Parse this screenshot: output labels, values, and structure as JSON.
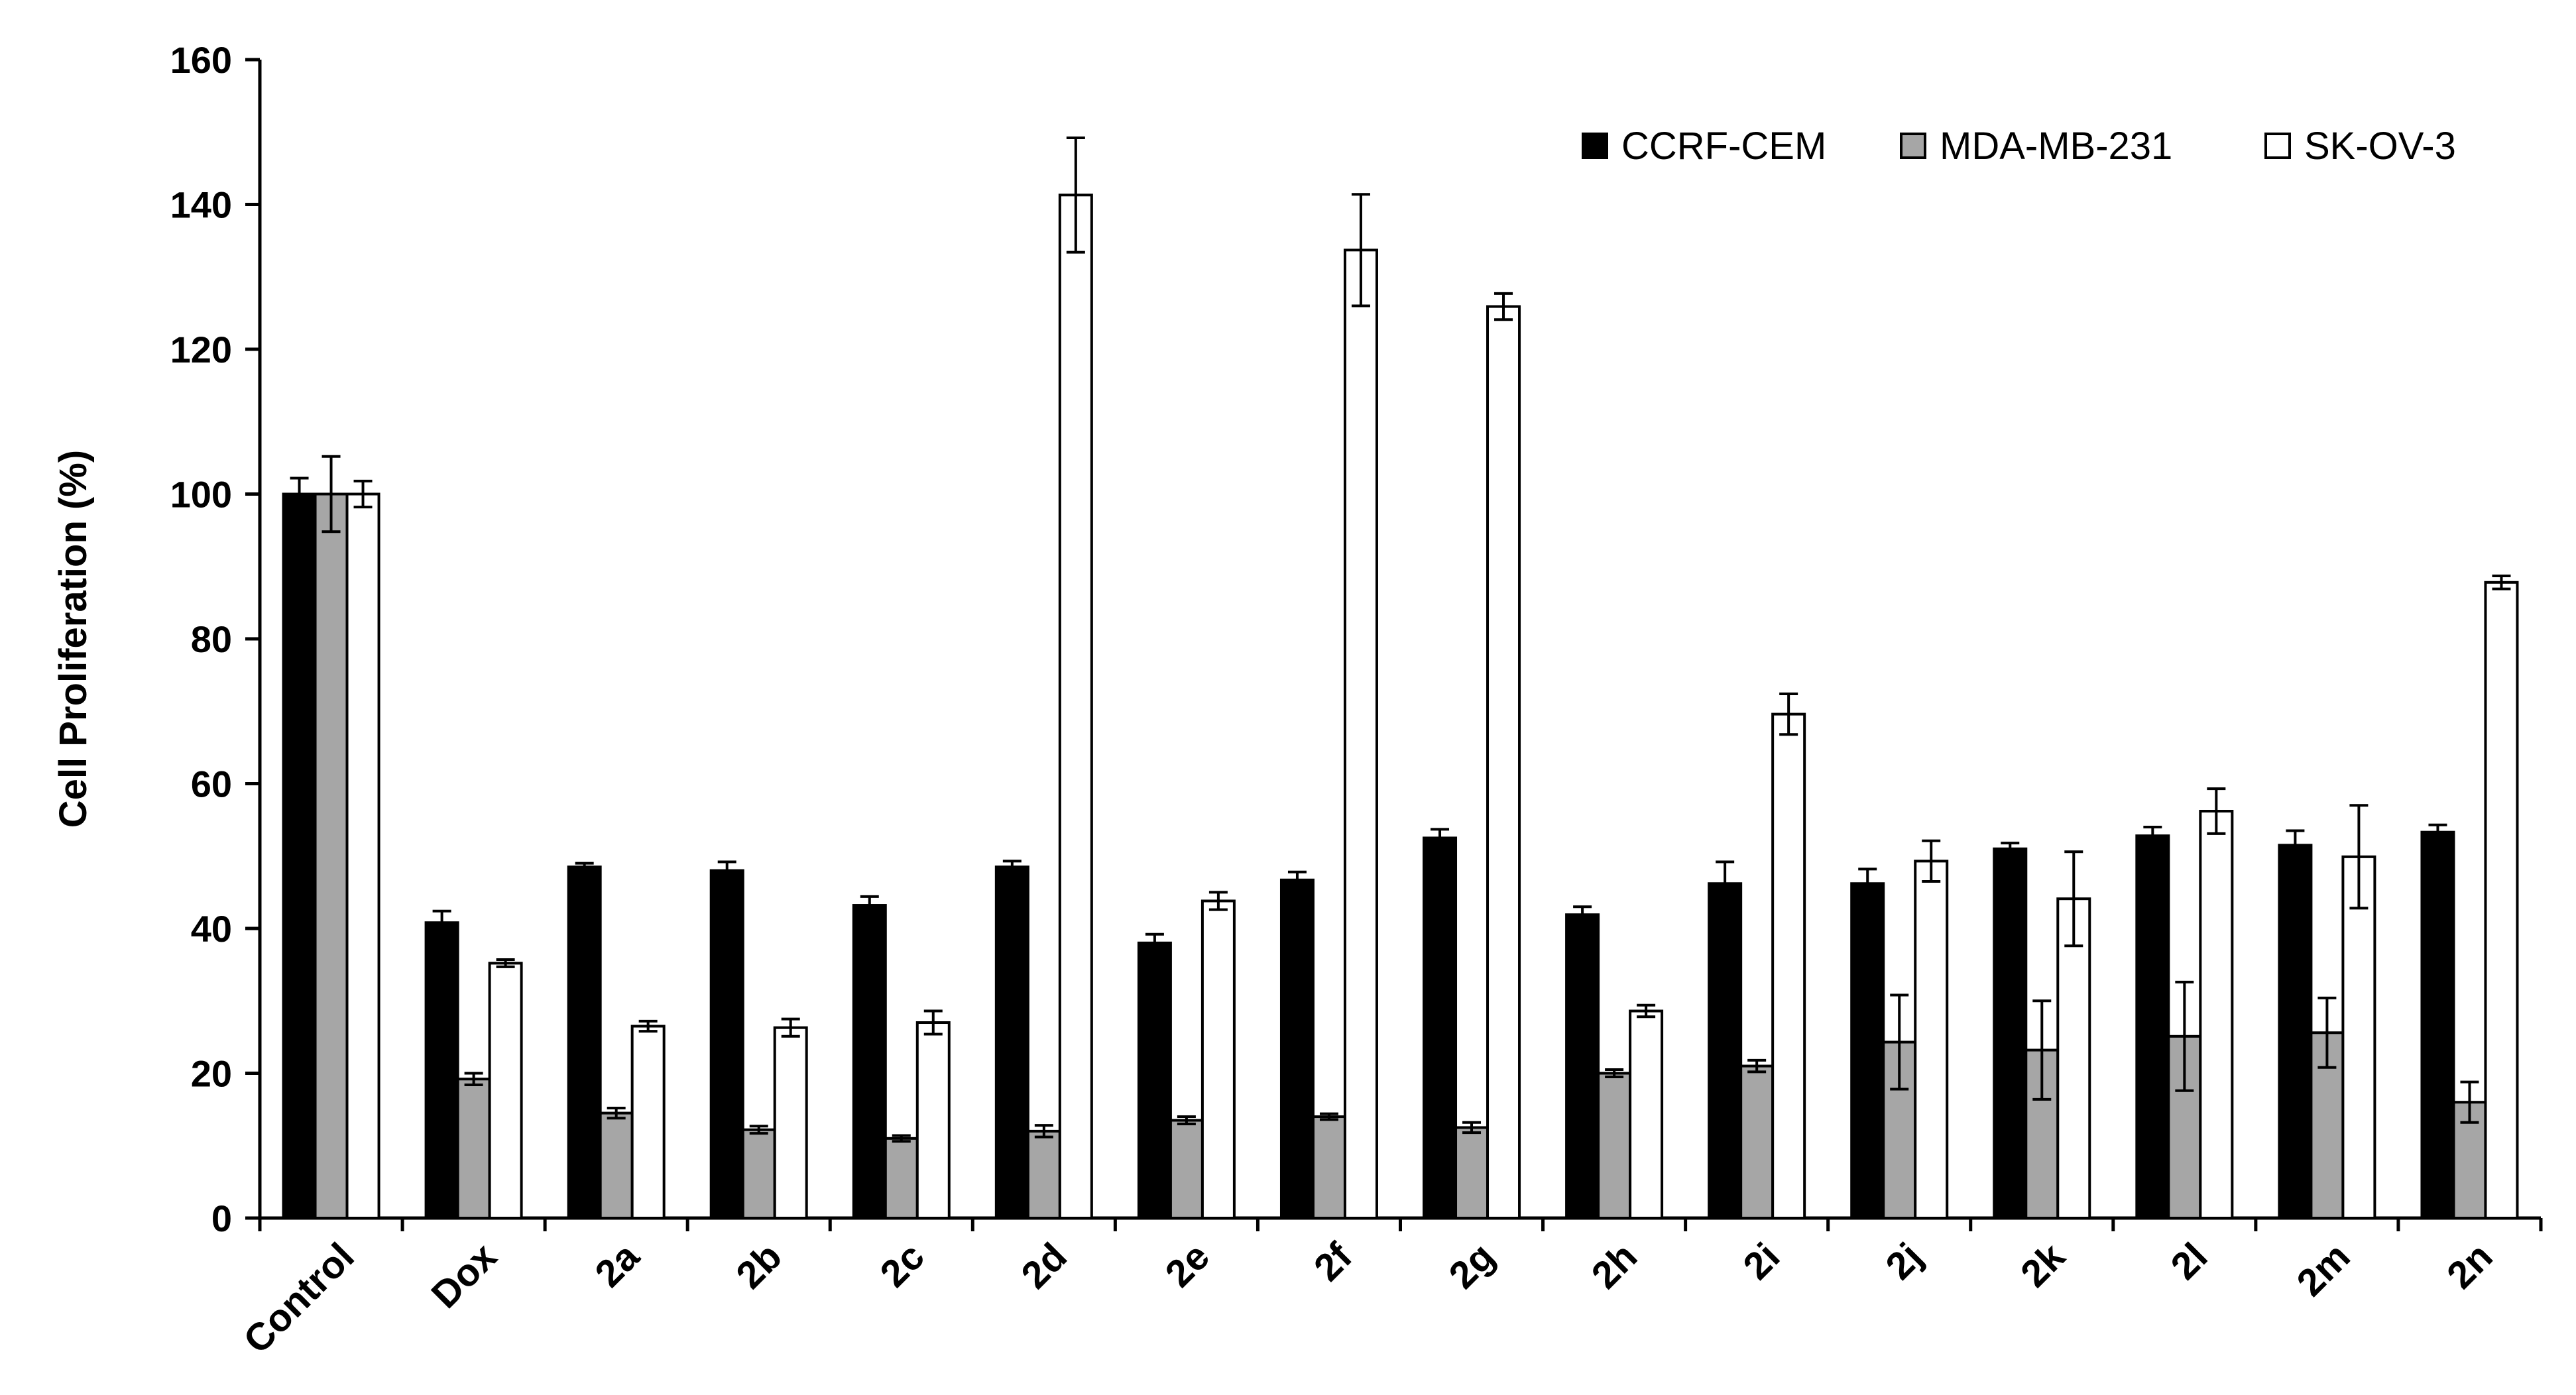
{
  "chart_data": {
    "type": "bar",
    "title": "",
    "xlabel": "",
    "ylabel": "Cell Proliferation (%)",
    "ylim": [
      0,
      160
    ],
    "yticks": [
      "0",
      "20",
      "40",
      "60",
      "80",
      "100",
      "120",
      "140",
      "160"
    ],
    "grid": false,
    "legend_position": "top-right",
    "categories": [
      "Control",
      "Dox",
      "2a",
      "2b",
      "2c",
      "2d",
      "2e",
      "2f",
      "2g",
      "2h",
      "2i",
      "2j",
      "2k",
      "2l",
      "2m",
      "2n"
    ],
    "series": [
      {
        "name": "CCRF-CEM",
        "color": "#000000",
        "values": [
          100,
          40.8,
          48.5,
          48.0,
          43.2,
          48.5,
          38.0,
          46.7,
          52.5,
          41.9,
          46.2,
          46.2,
          51.0,
          52.8,
          51.5,
          53.3
        ],
        "errors": [
          2.2,
          1.6,
          0.5,
          1.2,
          1.2,
          0.8,
          1.2,
          1.1,
          1.2,
          1.1,
          3.0,
          2.0,
          0.8,
          1.2,
          2.0,
          1.0
        ]
      },
      {
        "name": "MDA-MB-231",
        "color": "#a6a6a6",
        "values": [
          100,
          19.2,
          14.5,
          12.2,
          11.0,
          12.0,
          13.5,
          14.0,
          12.5,
          20.0,
          21.0,
          24.3,
          23.2,
          25.1,
          25.6,
          16.0
        ],
        "errors": [
          5.2,
          0.8,
          0.7,
          0.5,
          0.4,
          0.8,
          0.5,
          0.4,
          0.7,
          0.5,
          0.8,
          6.5,
          6.8,
          7.5,
          4.8,
          2.8
        ]
      },
      {
        "name": "SK-OV-3",
        "color": "#ffffff",
        "values": [
          100,
          35.2,
          26.5,
          26.3,
          27.0,
          141.3,
          43.8,
          133.7,
          125.9,
          28.6,
          69.6,
          49.3,
          44.1,
          56.2,
          49.9,
          87.8
        ],
        "errors": [
          1.8,
          0.5,
          0.7,
          1.2,
          1.6,
          7.9,
          1.2,
          7.7,
          1.8,
          0.8,
          2.8,
          2.8,
          6.5,
          3.1,
          7.1,
          0.9
        ]
      }
    ]
  }
}
